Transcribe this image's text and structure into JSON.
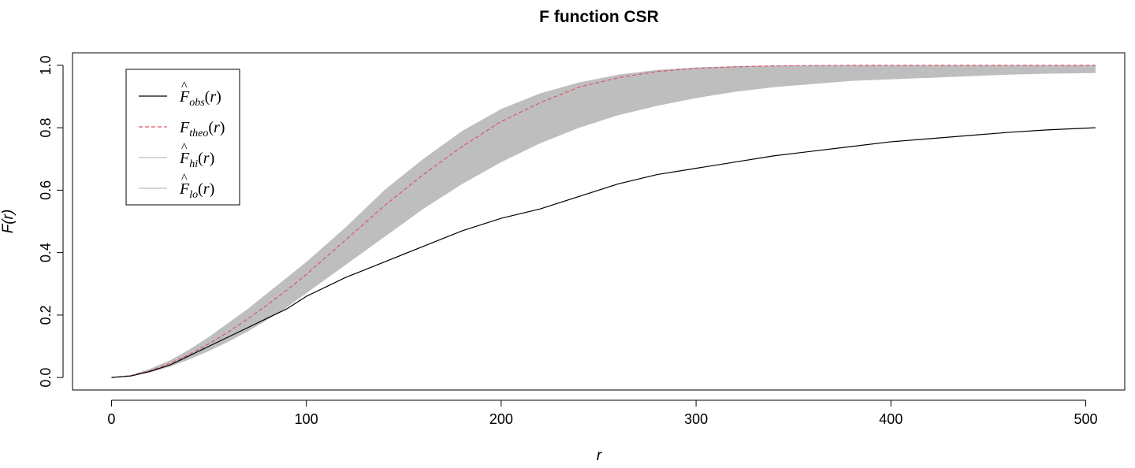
{
  "chart_data": {
    "type": "line",
    "title": "F function CSR",
    "xlabel": "r",
    "ylabel": "F(r)",
    "xlim": [
      -20,
      520
    ],
    "ylim": [
      -0.04,
      1.04
    ],
    "x_ticks": [
      0,
      100,
      200,
      300,
      400,
      500
    ],
    "x_tick_labels": [
      "0",
      "100",
      "200",
      "300",
      "400",
      "500"
    ],
    "y_ticks": [
      0.0,
      0.2,
      0.4,
      0.6,
      0.8,
      1.0
    ],
    "y_tick_labels": [
      "0.0",
      "0.2",
      "0.4",
      "0.6",
      "0.8",
      "1.0"
    ],
    "grid": false,
    "legend_position": "top-left",
    "x": [
      0,
      10,
      20,
      30,
      40,
      50,
      60,
      70,
      80,
      90,
      100,
      120,
      140,
      160,
      180,
      200,
      220,
      240,
      260,
      280,
      300,
      320,
      340,
      360,
      380,
      400,
      420,
      440,
      460,
      480,
      505
    ],
    "series": [
      {
        "name": "obs",
        "legend_base": "F",
        "legend_sub": "obs",
        "legend_hat": true,
        "color": "#000000",
        "dash": "solid",
        "values": [
          0.0,
          0.005,
          0.02,
          0.04,
          0.07,
          0.1,
          0.13,
          0.16,
          0.19,
          0.22,
          0.26,
          0.32,
          0.37,
          0.42,
          0.47,
          0.51,
          0.54,
          0.58,
          0.62,
          0.65,
          0.67,
          0.69,
          0.71,
          0.725,
          0.74,
          0.755,
          0.765,
          0.775,
          0.785,
          0.793,
          0.8
        ]
      },
      {
        "name": "theo",
        "legend_base": "F",
        "legend_sub": "theo",
        "legend_hat": false,
        "color": "#df536b",
        "dash": "dashed",
        "values": [
          0.0,
          0.006,
          0.022,
          0.045,
          0.074,
          0.108,
          0.146,
          0.188,
          0.233,
          0.28,
          0.33,
          0.44,
          0.55,
          0.65,
          0.74,
          0.82,
          0.88,
          0.93,
          0.96,
          0.98,
          0.99,
          0.995,
          0.998,
          0.999,
          1.0,
          1.0,
          1.0,
          1.0,
          1.0,
          1.0,
          1.0
        ]
      },
      {
        "name": "hi",
        "legend_base": "F",
        "legend_sub": "hi",
        "legend_hat": true,
        "color": "#bebebe",
        "dash": "solid",
        "values": [
          0.0,
          0.008,
          0.028,
          0.055,
          0.09,
          0.13,
          0.175,
          0.22,
          0.27,
          0.32,
          0.37,
          0.48,
          0.6,
          0.7,
          0.79,
          0.86,
          0.91,
          0.945,
          0.97,
          0.985,
          0.993,
          0.997,
          0.999,
          1.0,
          1.0,
          1.0,
          1.0,
          1.0,
          1.0,
          1.0,
          1.0
        ]
      },
      {
        "name": "lo",
        "legend_base": "F",
        "legend_sub": "lo",
        "legend_hat": true,
        "color": "#bebebe",
        "dash": "solid",
        "values": [
          0.0,
          0.004,
          0.016,
          0.035,
          0.058,
          0.085,
          0.115,
          0.148,
          0.185,
          0.225,
          0.27,
          0.36,
          0.45,
          0.54,
          0.62,
          0.69,
          0.75,
          0.8,
          0.84,
          0.87,
          0.895,
          0.915,
          0.93,
          0.94,
          0.95,
          0.955,
          0.96,
          0.965,
          0.97,
          0.973,
          0.975
        ]
      }
    ],
    "band": {
      "lower": "lo",
      "upper": "hi",
      "color": "#bebebe"
    }
  }
}
